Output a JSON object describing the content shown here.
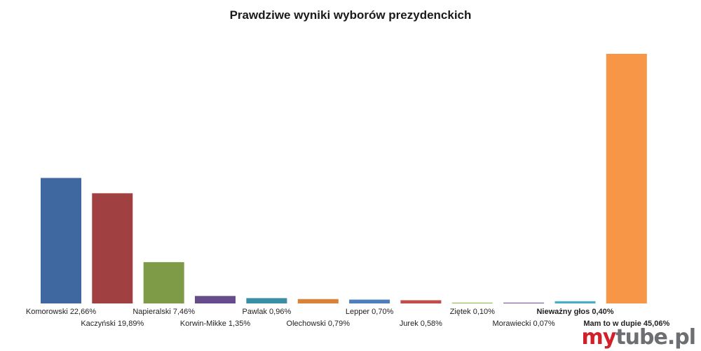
{
  "chart_data": {
    "type": "bar",
    "title": "Prawdziwe wyniki wyborów prezydenckich",
    "categories": [
      "Komorowski 22,66%",
      "Kaczyński 19,89%",
      "Napieralski 7,46%",
      "Korwin-Mikke 1,35%",
      "Pawlak 0,96%",
      "Olechowski 0,79%",
      "Lepper 0,70%",
      "Jurek 0,58%",
      "Ziętek 0,10%",
      "Morawiecki 0,07%",
      "Nieważny głos 0,40%",
      "Mam to w dupie 45,06%"
    ],
    "values": [
      22.66,
      19.89,
      7.46,
      1.35,
      0.96,
      0.79,
      0.7,
      0.58,
      0.1,
      0.07,
      0.4,
      45.06
    ],
    "colors": [
      "#4068a0",
      "#a04040",
      "#7e9c48",
      "#664c8a",
      "#3a8ea6",
      "#d9823a",
      "#4d7fbd",
      "#c34c4a",
      "#9bbb59",
      "#8064a2",
      "#4bacc6",
      "#f79646"
    ],
    "bold_labels": [
      false,
      false,
      false,
      false,
      false,
      false,
      false,
      false,
      false,
      false,
      true,
      true
    ],
    "ylim": [
      0,
      45.06
    ],
    "xlabel": "",
    "ylabel": "",
    "grid": false,
    "legend": "none"
  },
  "watermark": {
    "part1": "my",
    "part2": "tube.pl"
  }
}
